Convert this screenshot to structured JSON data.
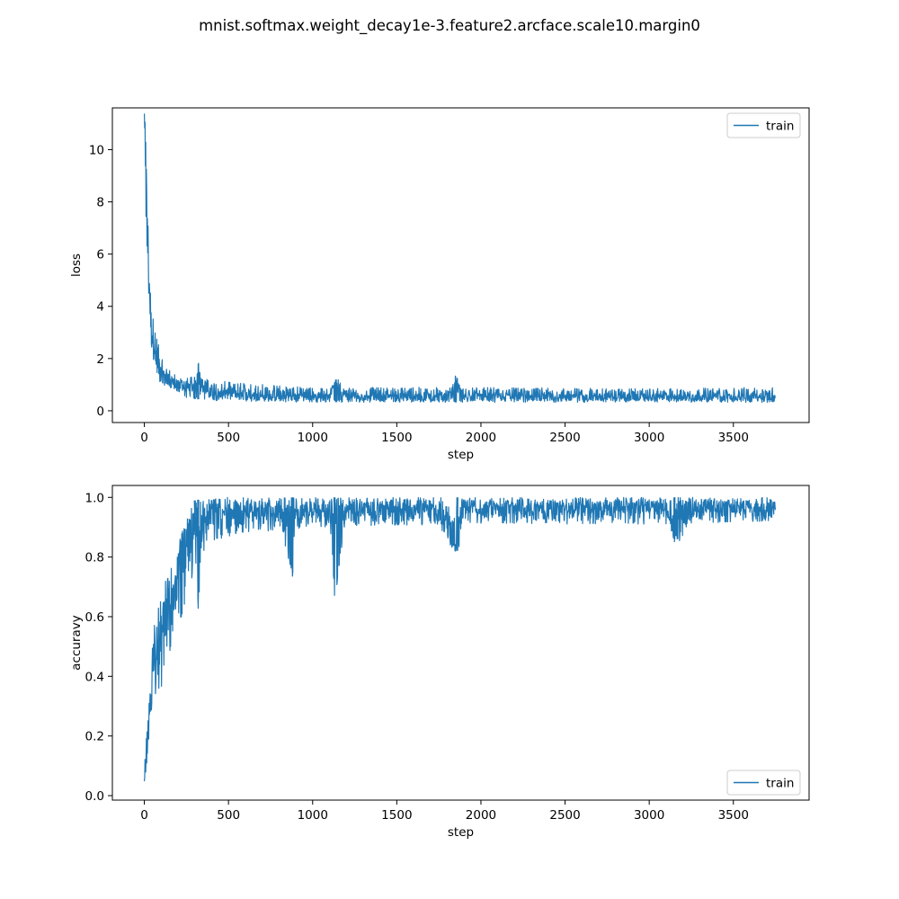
{
  "figure": {
    "title": "mnist.softmax.weight_decay1e-3.feature2.arcface.scale10.margin0"
  },
  "chart_data": [
    {
      "type": "line",
      "xlabel": "step",
      "ylabel": "loss",
      "xlim": [
        -190,
        3950
      ],
      "ylim": [
        -0.45,
        11.6
      ],
      "xticks": [
        0,
        500,
        1000,
        1500,
        2000,
        2500,
        3000,
        3500
      ],
      "yticks": [
        0,
        2,
        4,
        6,
        8,
        10
      ],
      "legend": {
        "placement": "upper-right",
        "entries": [
          "train"
        ]
      },
      "grid": false,
      "series": [
        {
          "name": "train",
          "color": "#1f77b4",
          "x": [
            0,
            10,
            20,
            30,
            40,
            50,
            60,
            80,
            100,
            120,
            150,
            200,
            250,
            300,
            320,
            350,
            400,
            500,
            600,
            700,
            800,
            900,
            1000,
            1100,
            1140,
            1200,
            1300,
            1400,
            1500,
            1600,
            1700,
            1800,
            1850,
            1900,
            2000,
            2200,
            2500,
            2800,
            3000,
            3200,
            3400,
            3500,
            3600,
            3700,
            3750
          ],
          "values": [
            11.2,
            9.6,
            6.1,
            4.0,
            3.2,
            2.4,
            2.0,
            1.6,
            1.4,
            1.3,
            1.15,
            1.0,
            0.9,
            0.8,
            1.8,
            0.8,
            0.7,
            0.6,
            0.6,
            0.55,
            0.55,
            0.55,
            0.55,
            0.52,
            1.2,
            0.5,
            0.5,
            0.5,
            0.5,
            0.5,
            0.5,
            0.55,
            1.3,
            0.5,
            0.5,
            0.5,
            0.5,
            0.5,
            0.5,
            0.5,
            0.5,
            0.5,
            0.5,
            0.55,
            0.6
          ],
          "noise_band": {
            "x": [
              0,
              40,
              100,
              200,
              300,
              500,
              1000,
              2000,
              3000,
              3750
            ],
            "low": [
              8.5,
              2.4,
              0.8,
              0.5,
              0.45,
              0.35,
              0.33,
              0.32,
              0.32,
              0.32
            ],
            "high": [
              11.2,
              4.0,
              2.0,
              1.3,
              1.3,
              1.1,
              0.9,
              0.9,
              0.85,
              0.9
            ]
          }
        }
      ]
    },
    {
      "type": "line",
      "xlabel": "step",
      "ylabel": "accuravy",
      "xlim": [
        -190,
        3950
      ],
      "ylim": [
        -0.015,
        1.04
      ],
      "xticks": [
        0,
        500,
        1000,
        1500,
        2000,
        2500,
        3000,
        3500
      ],
      "yticks": [
        0.0,
        0.2,
        0.4,
        0.6,
        0.8,
        1.0
      ],
      "legend": {
        "placement": "lower-right",
        "entries": [
          "train"
        ]
      },
      "grid": false,
      "series": [
        {
          "name": "train",
          "color": "#1f77b4",
          "x": [
            0,
            10,
            20,
            30,
            40,
            50,
            60,
            80,
            100,
            120,
            150,
            180,
            200,
            220,
            250,
            280,
            300,
            320,
            350,
            400,
            450,
            500,
            600,
            700,
            800,
            880,
            900,
            1000,
            1100,
            1130,
            1200,
            1300,
            1500,
            1700,
            1860,
            1900,
            2000,
            2200,
            2500,
            2800,
            3000,
            3100,
            3150,
            3300,
            3500,
            3600,
            3750
          ],
          "values": [
            0.05,
            0.1,
            0.2,
            0.27,
            0.35,
            0.42,
            0.48,
            0.55,
            0.58,
            0.6,
            0.62,
            0.68,
            0.75,
            0.82,
            0.88,
            0.9,
            0.92,
            0.66,
            0.94,
            0.96,
            0.96,
            0.96,
            0.96,
            0.96,
            0.96,
            0.75,
            0.96,
            0.96,
            0.96,
            0.67,
            0.96,
            0.96,
            0.97,
            0.97,
            0.82,
            0.97,
            0.97,
            0.97,
            0.97,
            0.97,
            0.97,
            0.97,
            0.85,
            0.97,
            0.97,
            0.97,
            0.97
          ],
          "noise_band": {
            "x": [
              0,
              50,
              100,
              200,
              300,
              400,
              600,
              1000,
              2000,
              3000,
              3750
            ],
            "low": [
              0.03,
              0.3,
              0.36,
              0.55,
              0.75,
              0.85,
              0.88,
              0.9,
              0.91,
              0.91,
              0.92
            ],
            "high": [
              0.1,
              0.56,
              0.67,
              0.86,
              0.99,
              1.0,
              1.0,
              1.0,
              1.0,
              1.0,
              1.0
            ]
          }
        }
      ]
    }
  ]
}
